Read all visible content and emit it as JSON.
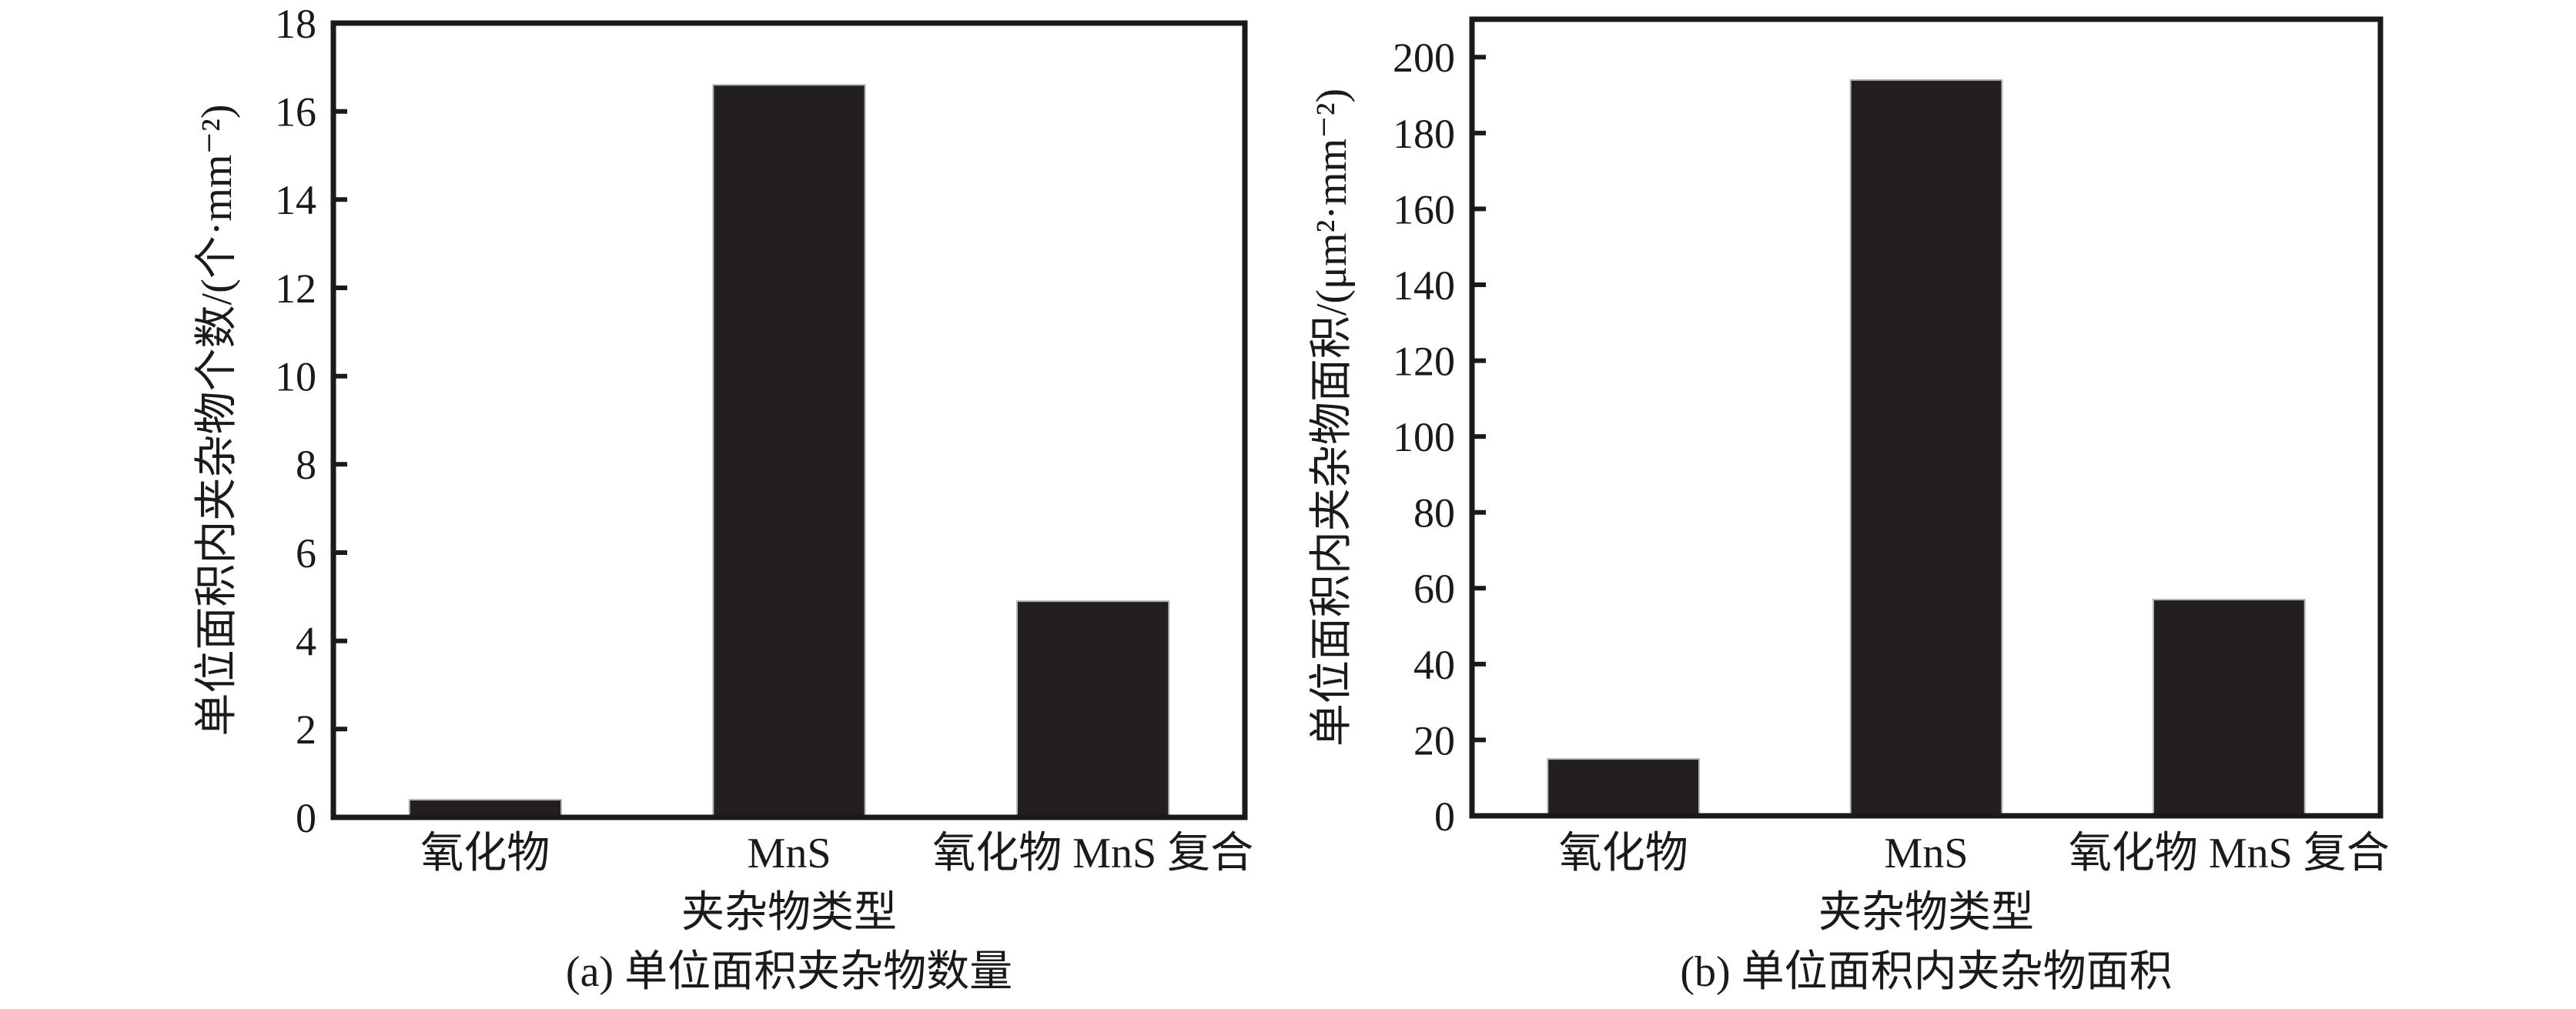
{
  "figure": {
    "background": "#ffffff",
    "bar_color": "#231f20",
    "bar_edge_color": "#b3b3b3",
    "axis_color": "#1a1a1a",
    "text_color": "#1a1a1a"
  },
  "chart_data": [
    {
      "type": "bar",
      "title": "(a) 单位面积夹杂物数量",
      "categories": [
        "氧化物",
        "MnS",
        "氧化物 MnS 复合"
      ],
      "values": [
        0.4,
        16.6,
        4.9
      ],
      "xlabel": "夹杂物类型",
      "ylabel": "单位面积内夹杂物个数/(个·mm⁻²)",
      "ylim": [
        0,
        18
      ],
      "yticks": [
        0,
        2,
        4,
        6,
        8,
        10,
        12,
        14,
        16,
        18
      ],
      "grid": false,
      "legend": "none"
    },
    {
      "type": "bar",
      "title": "(b) 单位面积内夹杂物面积",
      "categories": [
        "氧化物",
        "MnS",
        "氧化物 MnS 复合"
      ],
      "values": [
        15,
        194,
        57
      ],
      "xlabel": "夹杂物类型",
      "ylabel": "单位面积内夹杂物面积/(μm²·mm⁻²)",
      "ylim": [
        0,
        210
      ],
      "yticks": [
        0,
        20,
        40,
        60,
        80,
        100,
        120,
        140,
        160,
        180,
        200
      ],
      "grid": false,
      "legend": "none"
    }
  ]
}
